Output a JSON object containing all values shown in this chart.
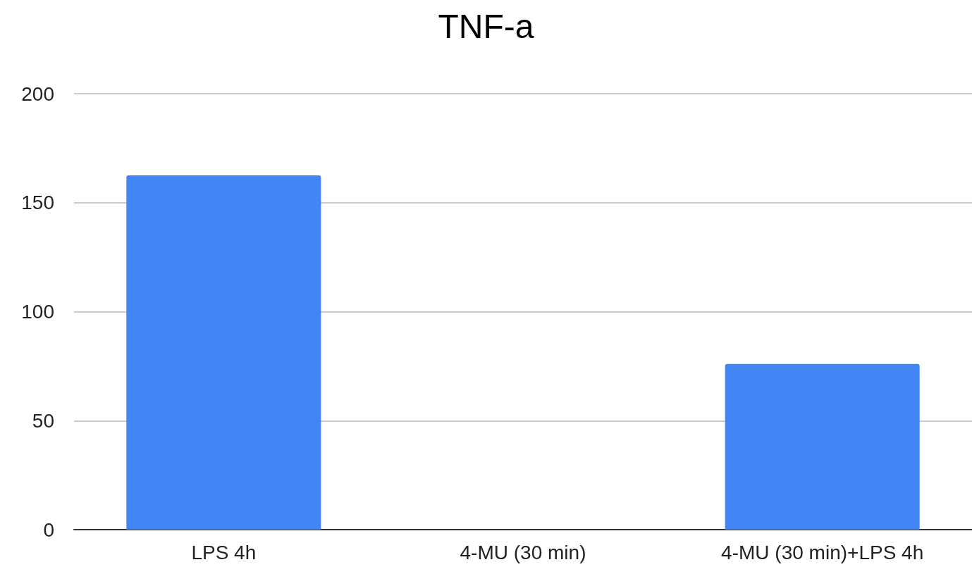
{
  "chart_data": {
    "type": "bar",
    "title": "TNF-a",
    "categories": [
      "LPS 4h",
      "4-MU (30 min)",
      "4-MU (30 min)+LPS 4h"
    ],
    "values": [
      162.5,
      0,
      76
    ],
    "color": "#4285f4",
    "ylim": [
      0,
      200
    ],
    "yticks": [
      0,
      50,
      100,
      150,
      200
    ],
    "grid": "y"
  }
}
